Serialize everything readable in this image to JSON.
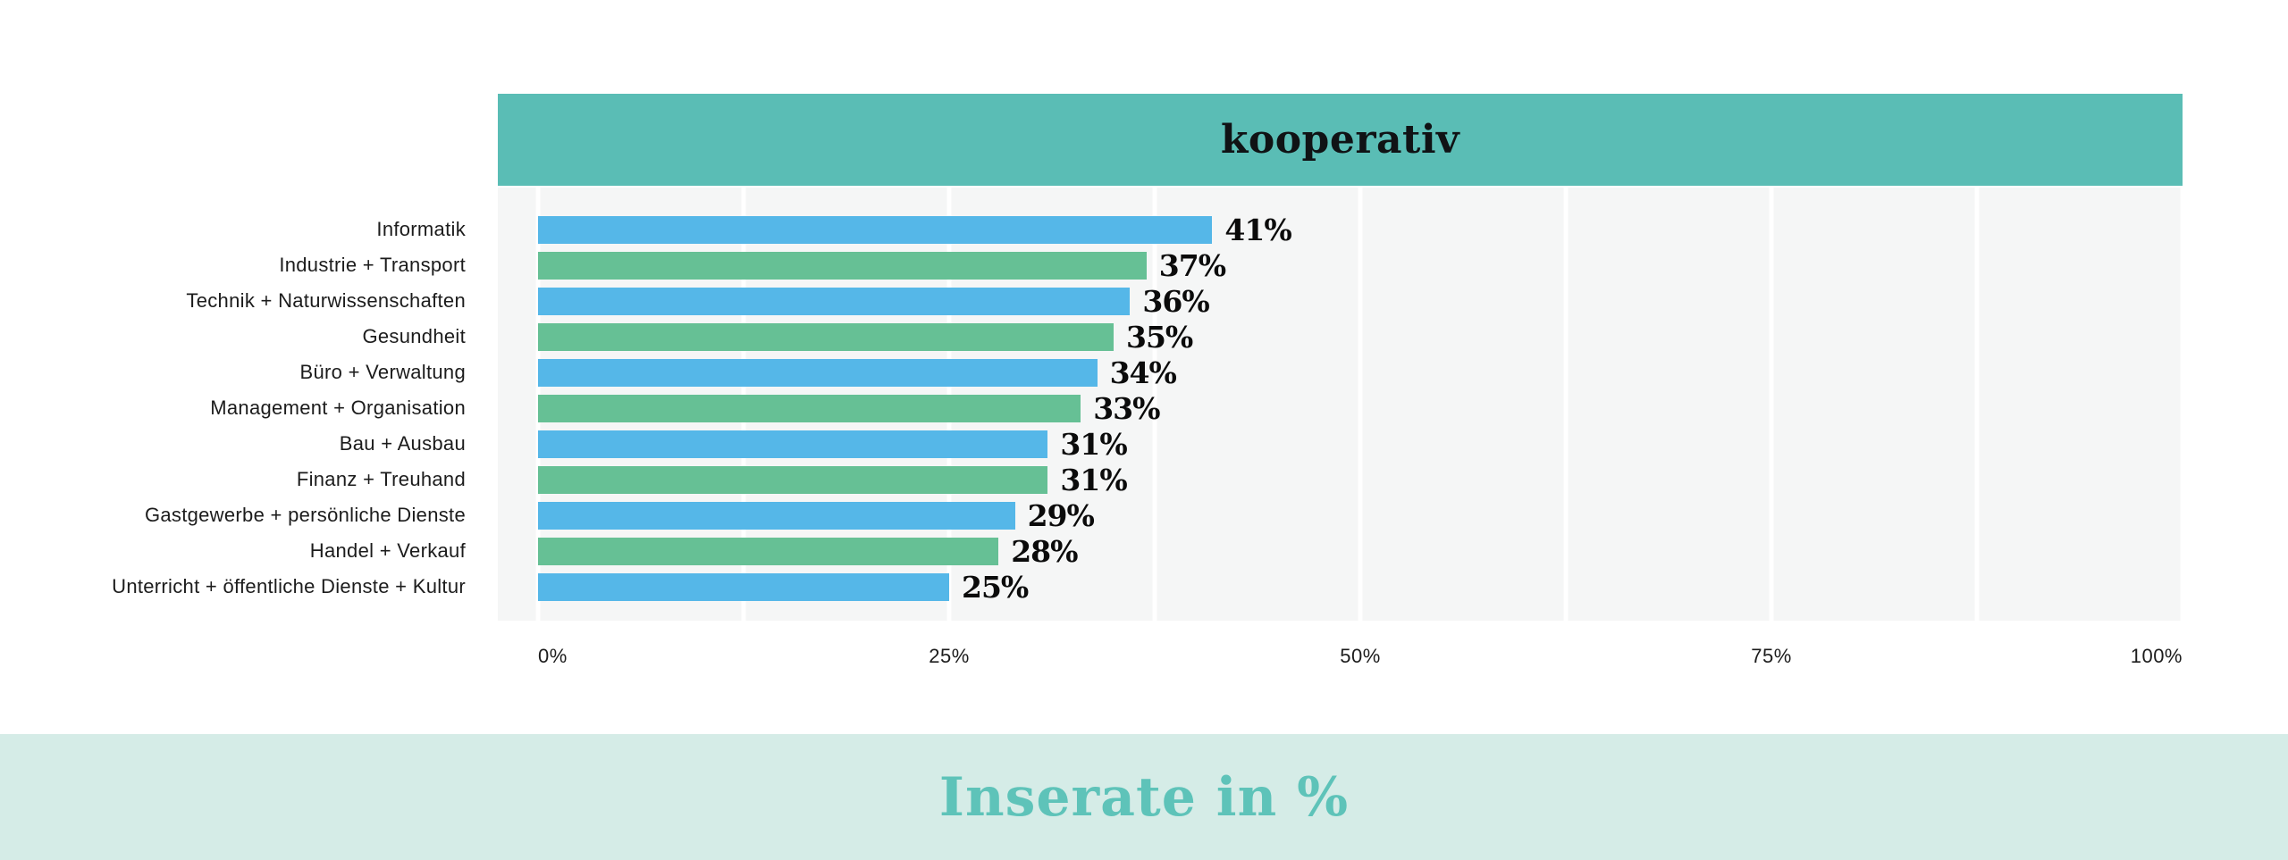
{
  "header": {
    "title": "kooperativ",
    "bg_color": "#5abdb5",
    "text_color": "#101315"
  },
  "footer": {
    "title": "Inserate in %",
    "bg_color": "#d5ece7",
    "text_color": "#5ec3b9"
  },
  "chart_data": {
    "type": "bar",
    "orientation": "horizontal",
    "title": "kooperativ",
    "caption": "Inserate in %",
    "unit": "%",
    "categories": [
      "Informatik",
      "Industrie + Transport",
      "Technik + Naturwissenschaften",
      "Gesundheit",
      "Büro + Verwaltung",
      "Management + Organisation",
      "Bau + Ausbau",
      "Finanz + Treuhand",
      "Gastgewerbe + persönliche Dienste",
      "Handel + Verkauf",
      "Unterricht + öffentliche Dienste + Kultur"
    ],
    "values": [
      41,
      37,
      36,
      35,
      34,
      33,
      31,
      31,
      29,
      28,
      25
    ],
    "value_labels": [
      "41%",
      "37%",
      "36%",
      "35%",
      "34%",
      "33%",
      "31%",
      "31%",
      "29%",
      "28%",
      "25%"
    ],
    "xlim": [
      0,
      100
    ],
    "x_ticks": [
      {
        "pct": 0,
        "label": "0%"
      },
      {
        "pct": 25,
        "label": "25%"
      },
      {
        "pct": 50,
        "label": "50%"
      },
      {
        "pct": 75,
        "label": "75%"
      },
      {
        "pct": 100,
        "label": "100%"
      }
    ],
    "gridline_step_pct": 12.5,
    "grid_on": true,
    "palette": {
      "bar_blue": "#55b7e8",
      "bar_green": "#66c095",
      "plot_bg": "#f5f6f6",
      "gridline": "#ffffff",
      "value_text": "#0b0b0b",
      "label_text": "#1c1c1c"
    },
    "legend": "none"
  }
}
